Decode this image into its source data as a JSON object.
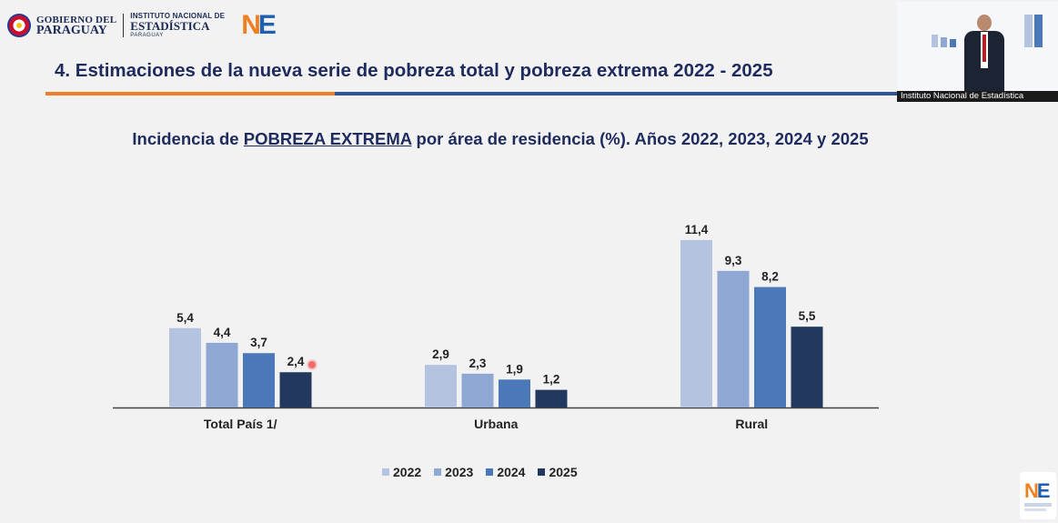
{
  "header": {
    "gov_line1": "GOBIERNO DEL",
    "gov_line2": "PARAGUAY",
    "ine_line1": "INSTITUTO NACIONAL DE",
    "ine_line2": "ESTADÍSTICA",
    "ine_line3": "PARAGUAY",
    "ne_n": "N",
    "ne_e": "E",
    "slide_title": "4. Estimaciones de la nueva serie de pobreza total y pobreza extrema 2022 - 2025"
  },
  "video_overlay": {
    "caption": "Instituto Nacional de Estadística"
  },
  "colors": {
    "s2022": "#b4c3df",
    "s2023": "#8ea7d3",
    "s2024": "#4a78b8",
    "s2025": "#22385e",
    "axis": "#444444",
    "title": "#1d2b5e"
  },
  "chart_data": {
    "type": "bar",
    "title_prefix": "Incidencia de ",
    "title_underlined": "POBREZA EXTREMA",
    "title_suffix": " por área de residencia (%). Años 2022, 2023, 2024 y 2025",
    "categories": [
      "Total País 1/",
      "Urbana",
      "Rural"
    ],
    "series": [
      {
        "name": "2022",
        "values": [
          5.4,
          2.9,
          11.4
        ],
        "labels": [
          "5,4",
          "2,9",
          "11,4"
        ]
      },
      {
        "name": "2023",
        "values": [
          4.4,
          2.3,
          9.3
        ],
        "labels": [
          "4,4",
          "2,3",
          "9,3"
        ]
      },
      {
        "name": "2024",
        "values": [
          3.7,
          1.9,
          8.2
        ],
        "labels": [
          "3,7",
          "1,9",
          "8,2"
        ]
      },
      {
        "name": "2025",
        "values": [
          2.4,
          1.2,
          5.5
        ],
        "labels": [
          "2,4",
          "1,2",
          "5,5"
        ]
      }
    ],
    "ylim": [
      0,
      12
    ],
    "grid": false,
    "legend_position": "bottom"
  }
}
